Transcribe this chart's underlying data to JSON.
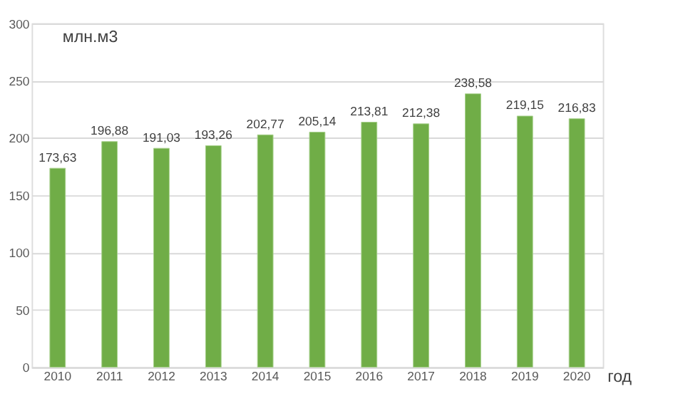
{
  "chart_data": {
    "type": "bar",
    "ylabel": "млн.м3",
    "xlabel": "год",
    "categories": [
      "2010",
      "2011",
      "2012",
      "2013",
      "2014",
      "2015",
      "2016",
      "2017",
      "2018",
      "2019",
      "2020"
    ],
    "values": [
      173.63,
      196.88,
      191.03,
      193.26,
      202.77,
      205.14,
      213.81,
      212.38,
      238.58,
      219.15,
      216.83
    ],
    "value_labels": [
      "173,63",
      "196,88",
      "191,03",
      "193,26",
      "202,77",
      "205,14",
      "213,81",
      "212,38",
      "238,58",
      "219,15",
      "216,83"
    ],
    "color": "#70ad47",
    "ylim": [
      0,
      300
    ],
    "yticks": [
      0,
      50,
      100,
      150,
      200,
      250,
      300
    ],
    "grid": "y"
  }
}
